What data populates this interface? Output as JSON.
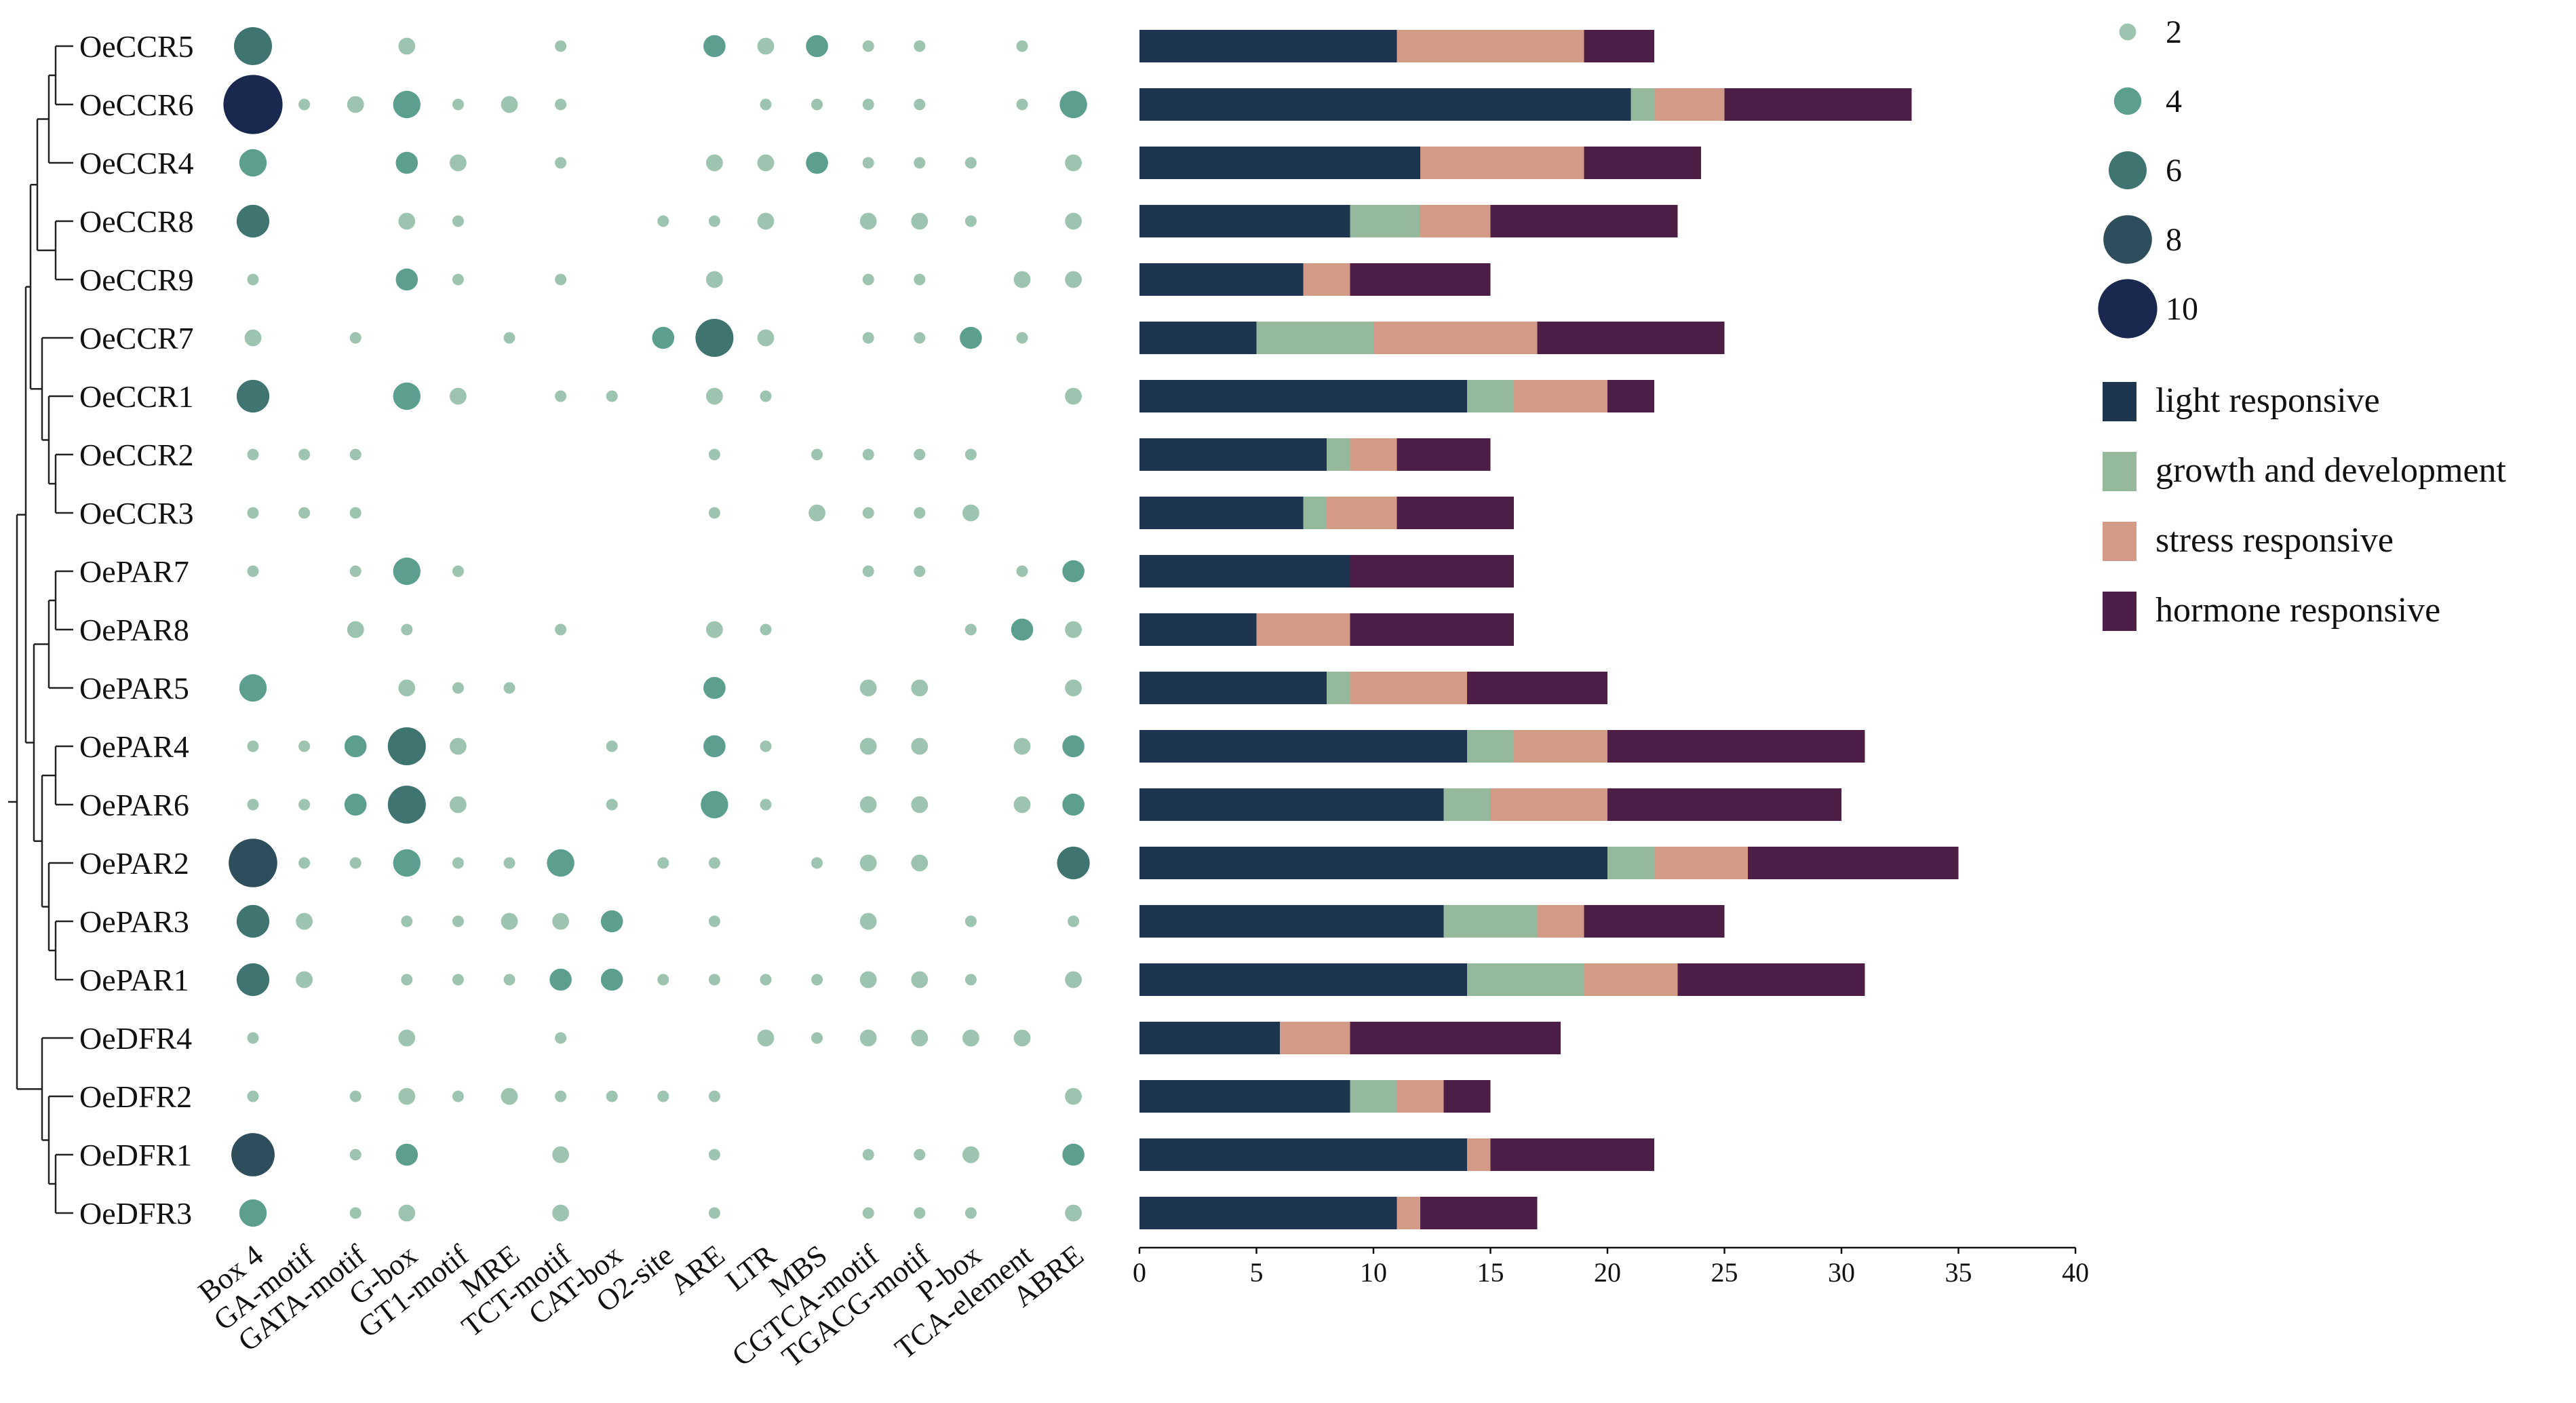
{
  "chart_data": [
    {
      "type": "dendrogram",
      "leaves": [
        "OeCCR5",
        "OeCCR6",
        "OeCCR4",
        "OeCCR8",
        "OeCCR9",
        "OeCCR7",
        "OeCCR1",
        "OeCCR2",
        "OeCCR3",
        "OePAR7",
        "OePAR8",
        "OePAR5",
        "OePAR4",
        "OePAR6",
        "OePAR2",
        "OePAR3",
        "OePAR1",
        "OeDFR4",
        "OeDFR2",
        "OeDFR1",
        "OeDFR3"
      ]
    },
    {
      "type": "bubble",
      "rows": [
        "OeCCR5",
        "OeCCR6",
        "OeCCR4",
        "OeCCR8",
        "OeCCR9",
        "OeCCR7",
        "OeCCR1",
        "OeCCR2",
        "OeCCR3",
        "OePAR7",
        "OePAR8",
        "OePAR5",
        "OePAR4",
        "OePAR6",
        "OePAR2",
        "OePAR3",
        "OePAR1",
        "OeDFR4",
        "OeDFR2",
        "OeDFR1",
        "OeDFR3"
      ],
      "columns": [
        "Box 4",
        "GA-motif",
        "GATA-motif",
        "G-box",
        "GT1-motif",
        "MRE",
        "TCT-motif",
        "CAT-box",
        "O2-site",
        "ARE",
        "LTR",
        "MBS",
        "CGTCA-motif",
        "TGACG-motif",
        "P-box",
        "TCA-element",
        "ABRE"
      ],
      "values": [
        [
          6,
          0,
          0,
          2,
          0,
          0,
          1,
          0,
          0,
          3,
          2,
          3,
          1,
          1,
          0,
          1,
          0
        ],
        [
          10,
          1,
          2,
          4,
          1,
          2,
          1,
          0,
          0,
          0,
          1,
          1,
          1,
          1,
          0,
          1,
          4
        ],
        [
          4,
          0,
          0,
          3,
          2,
          0,
          1,
          0,
          0,
          2,
          2,
          3,
          1,
          1,
          1,
          0,
          2
        ],
        [
          5,
          0,
          0,
          2,
          1,
          0,
          0,
          0,
          1,
          1,
          2,
          0,
          2,
          2,
          1,
          0,
          2
        ],
        [
          1,
          0,
          0,
          3,
          1,
          0,
          1,
          0,
          0,
          2,
          0,
          0,
          1,
          1,
          0,
          2,
          2
        ],
        [
          2,
          0,
          1,
          0,
          0,
          1,
          0,
          0,
          3,
          6,
          2,
          0,
          1,
          1,
          3,
          1,
          0
        ],
        [
          5,
          0,
          0,
          4,
          2,
          0,
          1,
          1,
          0,
          2,
          1,
          0,
          0,
          0,
          0,
          0,
          2
        ],
        [
          1,
          1,
          1,
          0,
          0,
          0,
          0,
          0,
          0,
          1,
          0,
          1,
          1,
          1,
          1,
          0,
          0
        ],
        [
          1,
          1,
          1,
          0,
          0,
          0,
          0,
          0,
          0,
          1,
          0,
          2,
          1,
          1,
          2,
          0,
          0
        ],
        [
          1,
          0,
          1,
          4,
          1,
          0,
          0,
          0,
          0,
          0,
          0,
          0,
          1,
          1,
          0,
          1,
          3
        ],
        [
          0,
          0,
          2,
          1,
          0,
          0,
          1,
          0,
          0,
          2,
          1,
          0,
          0,
          0,
          1,
          3,
          2
        ],
        [
          4,
          0,
          0,
          2,
          1,
          1,
          0,
          0,
          0,
          3,
          0,
          0,
          2,
          2,
          0,
          0,
          2
        ],
        [
          1,
          1,
          3,
          6,
          2,
          0,
          0,
          1,
          0,
          3,
          1,
          0,
          2,
          2,
          0,
          2,
          3
        ],
        [
          1,
          1,
          3,
          6,
          2,
          0,
          0,
          1,
          0,
          4,
          1,
          0,
          2,
          2,
          0,
          2,
          3
        ],
        [
          8,
          1,
          1,
          4,
          1,
          1,
          4,
          0,
          1,
          1,
          0,
          1,
          2,
          2,
          0,
          0,
          5
        ],
        [
          5,
          2,
          0,
          1,
          1,
          2,
          2,
          3,
          0,
          1,
          0,
          0,
          2,
          0,
          1,
          0,
          1
        ],
        [
          5,
          2,
          0,
          1,
          1,
          1,
          3,
          3,
          1,
          1,
          1,
          1,
          2,
          2,
          1,
          0,
          2
        ],
        [
          1,
          0,
          0,
          2,
          0,
          0,
          1,
          0,
          0,
          0,
          2,
          1,
          2,
          2,
          2,
          2,
          0
        ],
        [
          1,
          0,
          1,
          2,
          1,
          2,
          1,
          1,
          1,
          1,
          0,
          0,
          0,
          0,
          0,
          0,
          2
        ],
        [
          7,
          0,
          1,
          3,
          0,
          0,
          2,
          0,
          0,
          1,
          0,
          0,
          1,
          1,
          2,
          0,
          3
        ],
        [
          4,
          0,
          1,
          2,
          0,
          0,
          2,
          0,
          0,
          1,
          0,
          0,
          1,
          1,
          1,
          0,
          2
        ]
      ],
      "size_legend": [
        2,
        4,
        6,
        8,
        10
      ],
      "size_colors": [
        "#9cc4b0",
        "#5c9f8e",
        "#3f7470",
        "#2e4e5c",
        "#1a2850"
      ]
    },
    {
      "type": "bar",
      "stacked": true,
      "orientation": "horizontal",
      "categories": [
        "OeCCR5",
        "OeCCR6",
        "OeCCR4",
        "OeCCR8",
        "OeCCR9",
        "OeCCR7",
        "OeCCR1",
        "OeCCR2",
        "OeCCR3",
        "OePAR7",
        "OePAR8",
        "OePAR5",
        "OePAR4",
        "OePAR6",
        "OePAR2",
        "OePAR3",
        "OePAR1",
        "OeDFR4",
        "OeDFR2",
        "OeDFR1",
        "OeDFR3"
      ],
      "series": [
        {
          "name": "light responsive",
          "color": "#1e3550",
          "values": [
            11,
            21,
            12,
            9,
            7,
            5,
            14,
            8,
            7,
            9,
            5,
            8,
            14,
            13,
            20,
            13,
            14,
            6,
            9,
            14,
            11
          ]
        },
        {
          "name": "growth and development",
          "color": "#94b99d",
          "values": [
            0,
            1,
            0,
            3,
            0,
            5,
            2,
            1,
            1,
            0,
            0,
            1,
            2,
            2,
            2,
            4,
            5,
            0,
            2,
            0,
            0
          ]
        },
        {
          "name": "stress responsive",
          "color": "#d49a88",
          "values": [
            8,
            3,
            7,
            3,
            2,
            7,
            4,
            2,
            3,
            0,
            4,
            5,
            4,
            5,
            4,
            2,
            4,
            3,
            2,
            1,
            1
          ]
        },
        {
          "name": "hormone responsive",
          "color": "#4e1f46",
          "values": [
            3,
            8,
            5,
            8,
            6,
            8,
            2,
            4,
            5,
            7,
            7,
            6,
            11,
            10,
            9,
            6,
            8,
            9,
            2,
            7,
            5
          ]
        }
      ],
      "xlim": [
        0,
        40
      ],
      "xticks": [
        "0",
        "5",
        "10",
        "15",
        "20",
        "25",
        "30",
        "35",
        "40"
      ],
      "legend_position": "right"
    }
  ]
}
